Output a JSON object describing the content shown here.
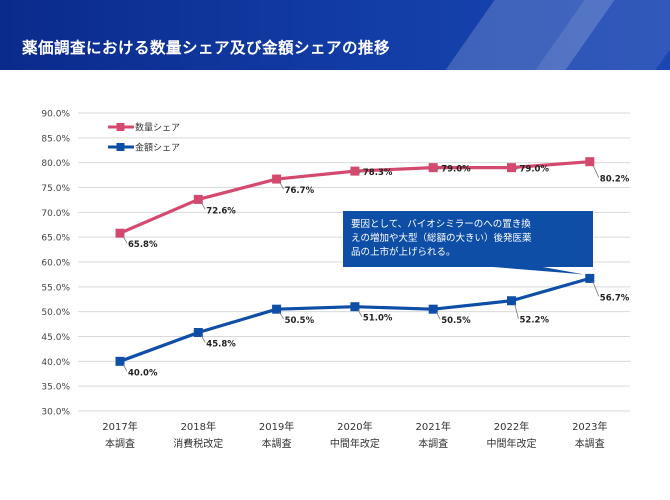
{
  "header": {
    "title": "薬価調査における数量シェア及び金額シェアの推移",
    "background_color": "#0b2a8c"
  },
  "callout": {
    "text_lines": [
      "要因として、バイオシミラーのへの置き換",
      "えの増加や大型（総額の大きい）後発医薬",
      "品の上市が上げられる。"
    ],
    "background_color": "#0e4ea6",
    "text_color": "#ffffff"
  },
  "chart_data": {
    "type": "line",
    "title": "",
    "xlabel": "",
    "ylabel": "",
    "categories": [
      [
        "2017年",
        "本調査"
      ],
      [
        "2018年",
        "消費税改定"
      ],
      [
        "2019年",
        "本調査"
      ],
      [
        "2020年",
        "中間年改定"
      ],
      [
        "2021年",
        "本調査"
      ],
      [
        "2022年",
        "中間年改定"
      ],
      [
        "2023年",
        "本調査"
      ]
    ],
    "ylim": [
      30,
      90
    ],
    "yticks": [
      "30.0%",
      "35.0%",
      "40.0%",
      "45.0%",
      "50.0%",
      "55.0%",
      "60.0%",
      "65.0%",
      "70.0%",
      "75.0%",
      "80.0%",
      "85.0%",
      "90.0%"
    ],
    "grid": true,
    "legend_position": "top-left",
    "series": [
      {
        "name": "数量シェア",
        "color": "#d4496e",
        "values": [
          65.8,
          72.6,
          76.7,
          78.3,
          79.0,
          79.0,
          80.2
        ],
        "labels": [
          "65.8%",
          "72.6%",
          "76.7%",
          "78.3%",
          "79.0%",
          "79.0%",
          "80.2%"
        ]
      },
      {
        "name": "金額シェア",
        "color": "#0e4ea6",
        "values": [
          40.0,
          45.8,
          50.5,
          51.0,
          50.5,
          52.2,
          56.7
        ],
        "labels": [
          "40.0%",
          "45.8%",
          "50.5%",
          "51.0%",
          "50.5%",
          "52.2%",
          "56.7%"
        ]
      }
    ]
  }
}
